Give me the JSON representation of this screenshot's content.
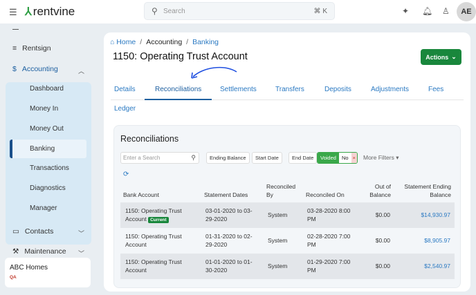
{
  "header": {
    "logo": "rentvine",
    "search_placeholder": "Search",
    "shortcut": "⌘ K",
    "avatar": "AE"
  },
  "sidebar": {
    "items": [
      {
        "label": "Rentsign"
      },
      {
        "label": "Accounting"
      },
      {
        "label": "Contacts"
      },
      {
        "label": "Maintenance"
      }
    ],
    "accounting_sub": [
      "Dashboard",
      "Money In",
      "Money Out",
      "Banking",
      "Transactions",
      "Diagnostics",
      "Manager"
    ],
    "org": {
      "name": "ABC Homes",
      "env": "QA"
    }
  },
  "breadcrumb": {
    "home": "Home",
    "accounting": "Accounting",
    "banking": "Banking",
    "sep": "/"
  },
  "page_title": "1150: Operating Trust Account",
  "actions_label": "Actions",
  "tabs": [
    "Details",
    "Reconciliations",
    "Settlements",
    "Transfers",
    "Deposits",
    "Adjustments",
    "Fees",
    "Ledger"
  ],
  "reconciliations": {
    "title": "Reconciliations",
    "search_placeholder": "Enter a Search",
    "filters": {
      "ending_balance": "Ending Balance",
      "start_date": "Start Date",
      "end_date": "End Date",
      "voided": "Voided",
      "voided_value": "No",
      "clear": "×",
      "more": "More Filters ▾"
    },
    "columns": [
      "Bank Account",
      "Statement Dates",
      "Reconciled By",
      "Reconciled On",
      "Out of Balance",
      "Statement Ending Balance"
    ],
    "rows": [
      {
        "account": "1150: Operating Trust Account",
        "badge": "Current",
        "dates": "03-01-2020 to 03-29-2020",
        "by": "System",
        "on": "03-28-2020 8:00 PM",
        "oob": "$0.00",
        "ending": "$14,930.97"
      },
      {
        "account": "1150: Operating Trust Account",
        "dates": "01-31-2020 to 02-29-2020",
        "by": "System",
        "on": "02-28-2020 7:00 PM",
        "oob": "$0.00",
        "ending": "$8,905.97"
      },
      {
        "account": "1150: Operating Trust Account",
        "dates": "01-01-2020 to 01-30-2020",
        "by": "System",
        "on": "01-29-2020 7:00 PM",
        "oob": "$0.00",
        "ending": "$2,540.97"
      }
    ]
  },
  "colors": {
    "brand": "#2e9e44",
    "accent": "#2a79c2",
    "action": "#19873c"
  }
}
